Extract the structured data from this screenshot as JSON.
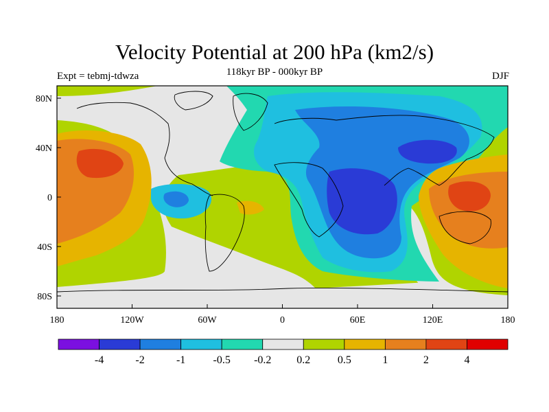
{
  "title": "Velocity Potential at 200 hPa (km2/s)",
  "subtitle": "118kyr BP - 000kyr BP",
  "left_label": "Expt = tebmj-tdwza",
  "right_label": "DJF",
  "chart_data": {
    "type": "heatmap",
    "projection": "cylindrical-equidistant",
    "variable": "Velocity Potential at 200 hPa",
    "units": "km2/s",
    "lon_range": [
      -180,
      180
    ],
    "lat_range": [
      -90,
      90
    ],
    "x_ticks": [
      "180",
      "120W",
      "60W",
      "0",
      "60E",
      "120E",
      "180"
    ],
    "y_ticks": [
      "80N",
      "40N",
      "0",
      "40S",
      "80S"
    ],
    "colorbar": {
      "levels": [
        "-4",
        "-2",
        "-1",
        "-0.5",
        "-0.2",
        "0.2",
        "0.5",
        "1",
        "2",
        "4"
      ],
      "colors": [
        "#7b10e0",
        "#2a3bd6",
        "#1f7fe0",
        "#1fbfe0",
        "#22d8b0",
        "#e6e6e6",
        "#b0d400",
        "#e6b400",
        "#e6801e",
        "#e04414",
        "#e00000"
      ]
    },
    "features": [
      {
        "region": "Central Pacific",
        "sign": "positive",
        "max_level": "2 to 4"
      },
      {
        "region": "Western Pacific / Australia",
        "sign": "positive",
        "max_level": "2 to 4"
      },
      {
        "region": "East Africa / Indian Ocean",
        "sign": "negative",
        "min_level": "-4 to -2"
      },
      {
        "region": "East Asia",
        "sign": "negative",
        "min_level": "-4 to -2"
      },
      {
        "region": "Central America",
        "sign": "negative",
        "min_level": "-2 to -1"
      },
      {
        "region": "Tropical Atlantic",
        "sign": "positive",
        "max_level": "0.5 to 1"
      }
    ]
  }
}
